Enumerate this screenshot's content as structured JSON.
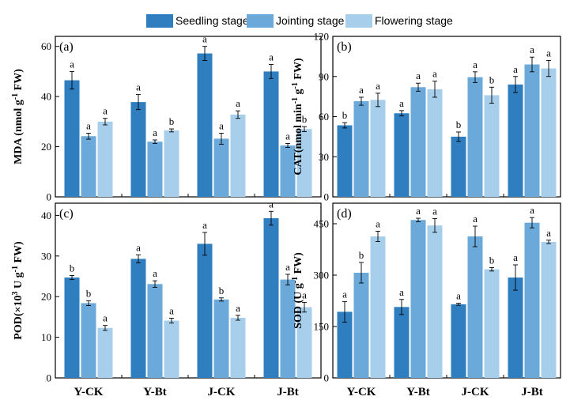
{
  "chart_data": {
    "type": "bar",
    "categories": [
      "Y-CK",
      "Y-Bt",
      "J-CK",
      "J-Bt"
    ],
    "legend": {
      "placement": "top",
      "entries": [
        "Seedling stage",
        "Jointing stage",
        "Flowering stage"
      ]
    },
    "colors": [
      "#2e7ec0",
      "#6aa9d9",
      "#a7cfec"
    ],
    "panels": [
      {
        "tag": "(a)",
        "ylabel_main": "MDA (nmol g",
        "ylabel_sup": "-1",
        "ylabel_tail": " FW)",
        "ylim": [
          0,
          64
        ],
        "yticks": [
          0,
          20,
          40,
          60
        ],
        "ytick_labels": [
          "0",
          "20",
          "40",
          "60"
        ],
        "series": [
          {
            "name": "Seedling stage",
            "values": [
              46.5,
              37.8,
              57.2,
              50.0
            ],
            "errors": [
              3.5,
              3.0,
              2.8,
              2.8
            ],
            "labels": [
              "a",
              "a",
              "a",
              "a"
            ]
          },
          {
            "name": "Jointing stage",
            "values": [
              24.2,
              22.0,
              23.2,
              20.5
            ],
            "errors": [
              1.2,
              0.7,
              2.2,
              0.8
            ],
            "labels": [
              "a",
              "a",
              "a",
              "a"
            ]
          },
          {
            "name": "Flowering stage",
            "values": [
              30.0,
              26.5,
              32.8,
              27.0
            ],
            "errors": [
              1.3,
              0.6,
              1.5,
              1.0
            ],
            "labels": [
              "a",
              "b",
              "a",
              "b"
            ]
          }
        ]
      },
      {
        "tag": "(b)",
        "ylabel_main": "CAT(nmol min",
        "ylabel_sup": "-1",
        "ylabel_mid": " g",
        "ylabel_sup2": "-1",
        "ylabel_tail": " FW)",
        "ylim": [
          0,
          120
        ],
        "yticks": [
          0,
          30,
          60,
          90,
          120
        ],
        "ytick_labels": [
          "0",
          "30",
          "60",
          "90",
          "120"
        ],
        "series": [
          {
            "name": "Seedling stage",
            "values": [
              53.5,
              62.5,
              45.0,
              84.0
            ],
            "errors": [
              2.0,
              2.0,
              3.5,
              6.0
            ],
            "labels": [
              "b",
              "a",
              "b",
              "a"
            ]
          },
          {
            "name": "Jointing stage",
            "values": [
              71.5,
              82.0,
              89.5,
              99.0
            ],
            "errors": [
              3.0,
              3.0,
              4.0,
              5.5
            ],
            "labels": [
              "a",
              "a",
              "a",
              "a"
            ]
          },
          {
            "name": "Flowering stage",
            "values": [
              72.5,
              80.5,
              76.0,
              96.0
            ],
            "errors": [
              5.0,
              6.0,
              6.0,
              6.0
            ],
            "labels": [
              "a",
              "a",
              "b",
              "a"
            ]
          }
        ]
      },
      {
        "tag": "(c)",
        "ylabel_main": "POD(×10",
        "ylabel_sup": "3",
        "ylabel_mid": " U g",
        "ylabel_sup2": "-1",
        "ylabel_tail": " FW)",
        "ylim": [
          0,
          43
        ],
        "yticks": [
          0,
          10,
          20,
          30,
          40
        ],
        "ytick_labels": [
          "0",
          "10",
          "20",
          "30",
          "40"
        ],
        "series": [
          {
            "name": "Seedling stage",
            "values": [
              24.7,
              29.3,
              33.0,
              39.3
            ],
            "errors": [
              0.5,
              1.0,
              2.8,
              1.7
            ],
            "labels": [
              "b",
              "a",
              "a",
              "a"
            ]
          },
          {
            "name": "Jointing stage",
            "values": [
              18.4,
              23.1,
              19.3,
              24.2
            ],
            "errors": [
              0.6,
              0.8,
              0.4,
              1.3
            ],
            "labels": [
              "b",
              "a",
              "b",
              "a"
            ]
          },
          {
            "name": "Flowering stage",
            "values": [
              12.3,
              14.1,
              14.8,
              17.4
            ],
            "errors": [
              0.6,
              0.6,
              0.6,
              1.2
            ],
            "labels": [
              "a",
              "a",
              "a",
              "a"
            ]
          }
        ]
      },
      {
        "tag": "(d)",
        "ylabel_main": "SOD (U g",
        "ylabel_sup": "-1",
        "ylabel_tail": " FW)",
        "ylim": [
          0,
          510
        ],
        "yticks": [
          0,
          150,
          300,
          450
        ],
        "ytick_labels": [
          "0",
          "150",
          "300",
          "450"
        ],
        "series": [
          {
            "name": "Seedling stage",
            "values": [
              193,
              207,
              215,
              293
            ],
            "errors": [
              30,
              22,
              3,
              37
            ],
            "labels": [
              "a",
              "a",
              "a",
              "a"
            ]
          },
          {
            "name": "Jointing stage",
            "values": [
              307,
              461,
              413,
              453
            ],
            "errors": [
              30,
              5,
              30,
              15
            ],
            "labels": [
              "b",
              "a",
              "a",
              "a"
            ]
          },
          {
            "name": "Flowering stage",
            "values": [
              413,
              445,
              317,
              397
            ],
            "errors": [
              15,
              20,
              5,
              5
            ],
            "labels": [
              "a",
              "a",
              "b",
              "a"
            ]
          }
        ]
      }
    ]
  }
}
